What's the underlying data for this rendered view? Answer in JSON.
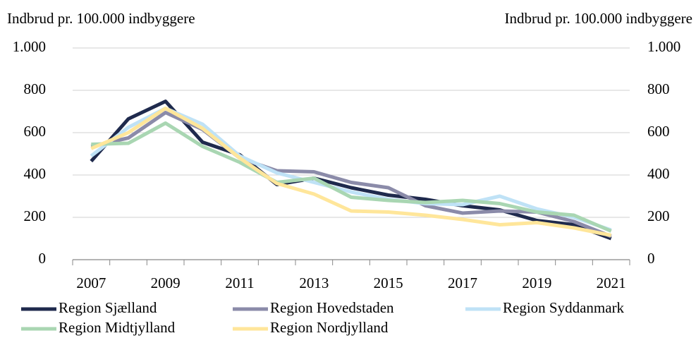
{
  "chart_data": {
    "type": "line",
    "y_label": "Indbrud pr. 100.000 indbyggere",
    "y2_label": "Indbrud pr. 100.000 indbyggere",
    "categories": [
      "2007",
      null,
      "2009",
      null,
      "2011",
      null,
      "2013",
      null,
      "2015",
      null,
      "2017",
      null,
      "2019",
      null,
      "2021"
    ],
    "series": [
      {
        "name": "Region Sjælland",
        "color": "#1f2a4d",
        "values": [
          465,
          665,
          748,
          555,
          495,
          355,
          385,
          340,
          305,
          285,
          255,
          235,
          185,
          165,
          100
        ]
      },
      {
        "name": "Region Hovedstaden",
        "color": "#8b8ba9",
        "values": [
          535,
          575,
          695,
          615,
          480,
          420,
          415,
          365,
          340,
          255,
          220,
          230,
          225,
          180,
          110
        ]
      },
      {
        "name": "Region Syddanmark",
        "color": "#bfe2f6",
        "values": [
          490,
          625,
          715,
          640,
          490,
          410,
          365,
          320,
          285,
          265,
          260,
          300,
          240,
          200,
          140
        ]
      },
      {
        "name": "Region Midtjylland",
        "color": "#a9d6b2",
        "values": [
          545,
          550,
          645,
          535,
          460,
          365,
          385,
          295,
          280,
          270,
          280,
          265,
          225,
          210,
          135
        ]
      },
      {
        "name": "Region Nordjylland",
        "color": "#ffe69a",
        "values": [
          525,
          600,
          715,
          620,
          480,
          360,
          310,
          230,
          225,
          210,
          190,
          165,
          175,
          150,
          115
        ]
      }
    ],
    "ylim": [
      0,
      1000
    ],
    "yticks": [
      0,
      200,
      400,
      600,
      800,
      {
        "value": 1000,
        "label": "1.000"
      }
    ],
    "y2lim": [
      0,
      1000
    ],
    "y2ticks": [
      0,
      200,
      400,
      600,
      800,
      {
        "value": 1000,
        "label": "1.000"
      }
    ],
    "grid": true,
    "legend": "bottom"
  }
}
